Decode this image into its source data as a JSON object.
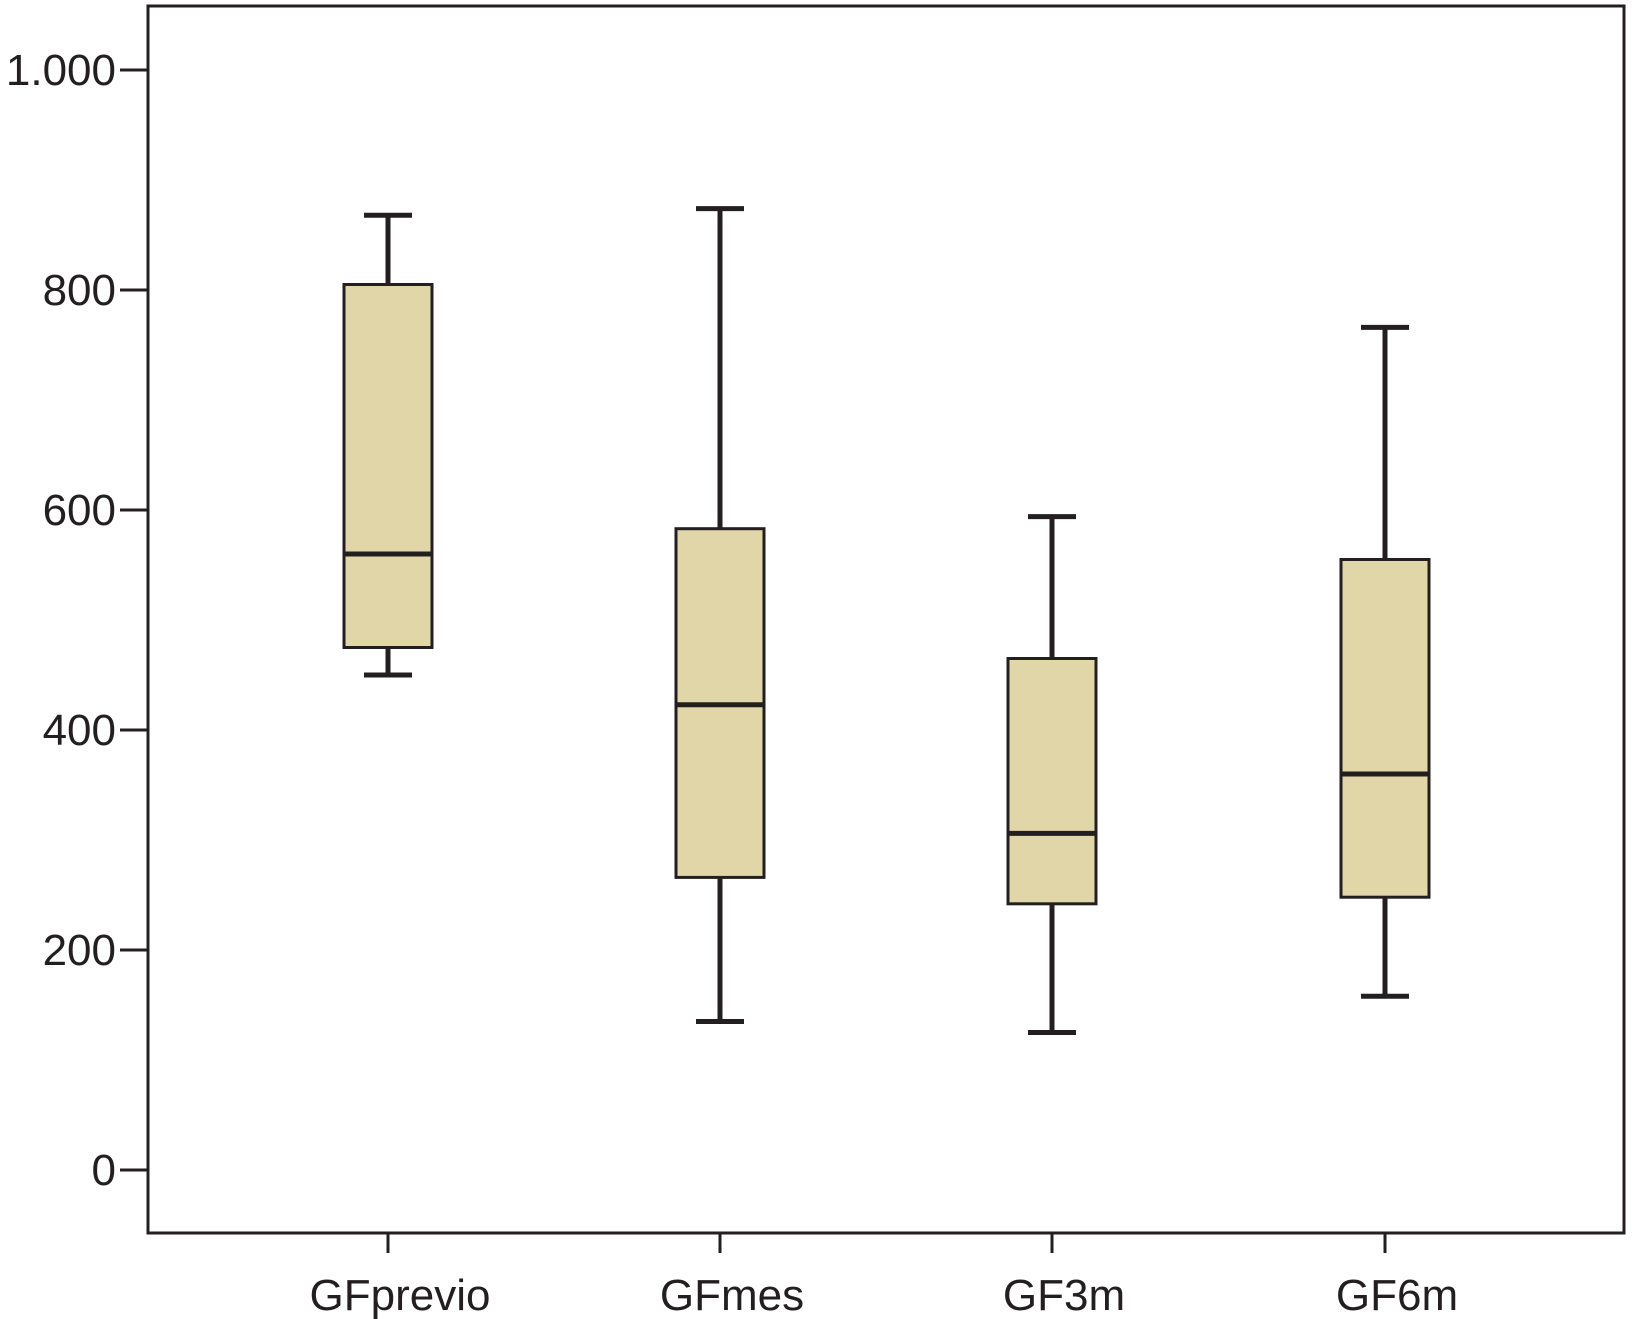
{
  "chart_data": {
    "type": "boxplot",
    "title": "",
    "xlabel": "",
    "ylabel": "",
    "ylim": [
      -60,
      1060
    ],
    "yticks": [
      0,
      200,
      400,
      600,
      800,
      1000
    ],
    "ytick_labels": [
      "0",
      "200",
      "400",
      "600",
      "800",
      "1.000"
    ],
    "categories": [
      "GFprevio",
      "GFmes",
      "GF3m",
      "GF6m"
    ],
    "boxes": [
      {
        "category": "GFprevio",
        "whisker_low": 450,
        "q1": 475,
        "median": 560,
        "q3": 805,
        "whisker_high": 868
      },
      {
        "category": "GFmes",
        "whisker_low": 135,
        "q1": 266,
        "median": 423,
        "q3": 583,
        "whisker_high": 874
      },
      {
        "category": "GF3m",
        "whisker_low": 125,
        "q1": 242,
        "median": 306,
        "q3": 465,
        "whisker_high": 594
      },
      {
        "category": "GF6m",
        "whisker_low": 158,
        "q1": 248,
        "median": 360,
        "q3": 555,
        "whisker_high": 766
      }
    ],
    "grid": false,
    "legend": "none",
    "colors": {
      "box_fill": "#e0d6a8",
      "stroke": "#231f20",
      "background": "#ffffff"
    }
  }
}
